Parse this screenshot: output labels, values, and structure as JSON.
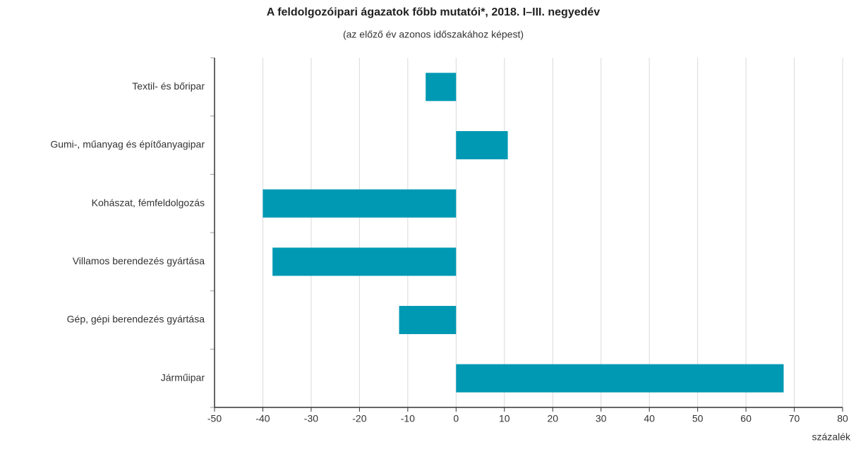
{
  "chart_data": {
    "type": "barh",
    "title": "A feldolgozóipari ágazatok főbb mutatói*, 2018. I–III. negyedév",
    "subtitle": "(az előző év azonos időszakához képest)",
    "x_label": "százalék",
    "categories": [
      "Textil- és bőripar",
      "Gumi-, műanyag és építőanyagipar",
      "Kohászat, fémfeldolgozás",
      "Villamos berendezés gyártása",
      "Gép, gépi berendezés gyártása",
      "Járműipar"
    ],
    "values": [
      -6.3,
      10.7,
      -40,
      -38,
      -11.8,
      67.8
    ],
    "color": "#0099b4",
    "xlim": [
      -50,
      80
    ],
    "xticks": [
      -50,
      -40,
      -30,
      -20,
      -10,
      0,
      10,
      20,
      30,
      40,
      50,
      60,
      70,
      80
    ],
    "grid": true
  }
}
